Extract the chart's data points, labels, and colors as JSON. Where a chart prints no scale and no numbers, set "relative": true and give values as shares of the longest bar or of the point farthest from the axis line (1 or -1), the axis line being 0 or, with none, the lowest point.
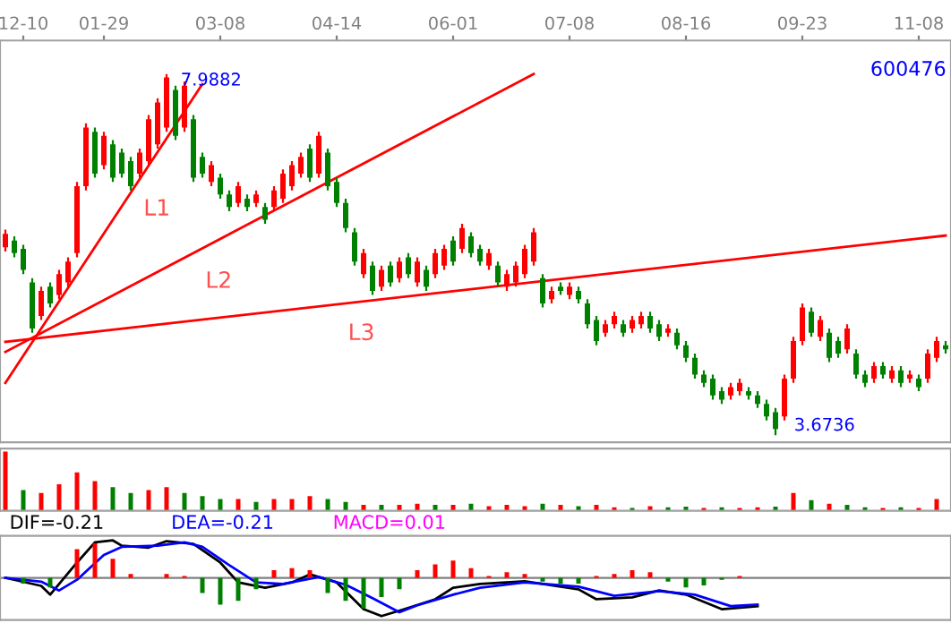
{
  "chart_data": [
    {
      "type": "candlestick",
      "title": "600476",
      "categories": [
        null,
        null,
        "12-10",
        null,
        null,
        null,
        null,
        null,
        null,
        null,
        null,
        "01-29",
        null,
        null,
        null,
        null,
        null,
        null,
        null,
        null,
        null,
        null,
        null,
        null,
        "03-08",
        null,
        null,
        null,
        null,
        null,
        null,
        null,
        null,
        null,
        null,
        null,
        null,
        "04-14",
        null,
        null,
        null,
        null,
        null,
        null,
        null,
        null,
        null,
        null,
        null,
        null,
        "06-01",
        null,
        null,
        null,
        null,
        null,
        null,
        null,
        null,
        null,
        null,
        null,
        null,
        "07-08",
        null,
        null,
        null,
        null,
        null,
        null,
        null,
        null,
        null,
        null,
        null,
        null,
        "08-16",
        null,
        null,
        null,
        null,
        null,
        null,
        null,
        null,
        null,
        null,
        null,
        null,
        "09-23",
        null,
        null,
        null,
        null,
        null,
        null,
        null,
        null,
        null,
        null,
        null,
        null,
        "11-08",
        null,
        null,
        null
      ],
      "ohlc": [
        [
          5.92,
          6.13,
          5.87,
          6.08
        ],
        [
          6.0,
          6.05,
          5.8,
          5.85
        ],
        [
          5.9,
          5.95,
          5.6,
          5.65
        ],
        [
          5.5,
          5.55,
          4.9,
          4.95
        ],
        [
          5.1,
          5.45,
          5.05,
          5.4
        ],
        [
          5.45,
          5.5,
          5.2,
          5.25
        ],
        [
          5.35,
          5.65,
          5.3,
          5.6
        ],
        [
          5.5,
          5.8,
          5.45,
          5.75
        ],
        [
          5.85,
          6.7,
          5.8,
          6.65
        ],
        [
          6.65,
          7.4,
          6.6,
          7.35
        ],
        [
          7.3,
          7.35,
          6.75,
          6.8
        ],
        [
          6.9,
          7.3,
          6.85,
          7.25
        ],
        [
          7.15,
          7.2,
          6.7,
          6.75
        ],
        [
          7.05,
          7.1,
          6.75,
          6.8
        ],
        [
          6.95,
          7.0,
          6.6,
          6.65
        ],
        [
          6.8,
          7.1,
          6.75,
          7.05
        ],
        [
          6.95,
          7.5,
          6.9,
          7.45
        ],
        [
          7.15,
          7.7,
          7.1,
          7.65
        ],
        [
          7.35,
          7.9882,
          7.3,
          7.95
        ],
        [
          7.8,
          7.85,
          7.2,
          7.25
        ],
        [
          7.35,
          7.9,
          7.3,
          7.85
        ],
        [
          7.45,
          7.5,
          6.7,
          6.75
        ],
        [
          7.0,
          7.05,
          6.75,
          6.8
        ],
        [
          6.7,
          6.95,
          6.65,
          6.9
        ],
        [
          6.75,
          6.8,
          6.5,
          6.55
        ],
        [
          6.55,
          6.6,
          6.35,
          6.4
        ],
        [
          6.45,
          6.7,
          6.4,
          6.65
        ],
        [
          6.5,
          6.55,
          6.35,
          6.4
        ],
        [
          6.45,
          6.6,
          6.4,
          6.55
        ],
        [
          6.4,
          6.45,
          6.2,
          6.25
        ],
        [
          6.4,
          6.65,
          6.35,
          6.6
        ],
        [
          6.5,
          6.85,
          6.45,
          6.8
        ],
        [
          6.65,
          6.95,
          6.6,
          6.9
        ],
        [
          6.8,
          7.05,
          6.75,
          7.0
        ],
        [
          7.1,
          7.15,
          6.7,
          6.75
        ],
        [
          6.8,
          7.3,
          6.75,
          7.25
        ],
        [
          7.05,
          7.1,
          6.6,
          6.65
        ],
        [
          6.7,
          6.75,
          6.4,
          6.45
        ],
        [
          6.45,
          6.5,
          6.1,
          6.15
        ],
        [
          6.1,
          6.15,
          5.7,
          5.75
        ],
        [
          5.6,
          5.9,
          5.55,
          5.85
        ],
        [
          5.7,
          5.75,
          5.35,
          5.4
        ],
        [
          5.45,
          5.7,
          5.4,
          5.65
        ],
        [
          5.7,
          5.75,
          5.45,
          5.5
        ],
        [
          5.55,
          5.8,
          5.5,
          5.75
        ],
        [
          5.8,
          5.85,
          5.55,
          5.6
        ],
        [
          5.5,
          5.8,
          5.45,
          5.75
        ],
        [
          5.65,
          5.7,
          5.4,
          5.45
        ],
        [
          5.6,
          5.9,
          5.55,
          5.85
        ],
        [
          5.7,
          5.95,
          5.65,
          5.9
        ],
        [
          6.0,
          6.05,
          5.7,
          5.75
        ],
        [
          5.9,
          6.2,
          5.85,
          6.15
        ],
        [
          6.05,
          6.1,
          5.8,
          5.85
        ],
        [
          5.9,
          5.95,
          5.7,
          5.75
        ],
        [
          5.7,
          5.9,
          5.65,
          5.85
        ],
        [
          5.7,
          5.75,
          5.45,
          5.5
        ],
        [
          5.45,
          5.65,
          5.4,
          5.6
        ],
        [
          5.5,
          5.75,
          5.45,
          5.7
        ],
        [
          5.6,
          5.95,
          5.55,
          5.9
        ],
        [
          5.75,
          6.15,
          5.7,
          6.1
        ],
        [
          5.55,
          5.6,
          5.2,
          5.25
        ],
        [
          5.3,
          5.45,
          5.25,
          5.4
        ],
        [
          5.45,
          5.5,
          5.35,
          5.4
        ],
        [
          5.35,
          5.5,
          5.3,
          5.45
        ],
        [
          5.4,
          5.45,
          5.25,
          5.3
        ],
        [
          5.25,
          5.3,
          4.95,
          5.0
        ],
        [
          5.05,
          5.1,
          4.75,
          4.8
        ],
        [
          4.9,
          5.05,
          4.85,
          5.0
        ],
        [
          5.0,
          5.15,
          4.95,
          5.1
        ],
        [
          5.0,
          5.05,
          4.85,
          4.9
        ],
        [
          4.95,
          5.1,
          4.9,
          5.05
        ],
        [
          5.0,
          5.15,
          4.95,
          5.1
        ],
        [
          5.1,
          5.15,
          4.9,
          4.95
        ],
        [
          5.0,
          5.05,
          4.8,
          4.85
        ],
        [
          4.9,
          5.0,
          4.85,
          4.95
        ],
        [
          4.9,
          4.95,
          4.7,
          4.75
        ],
        [
          4.75,
          4.8,
          4.55,
          4.6
        ],
        [
          4.6,
          4.65,
          4.35,
          4.4
        ],
        [
          4.4,
          4.45,
          4.25,
          4.3
        ],
        [
          4.35,
          4.4,
          4.1,
          4.15
        ],
        [
          4.2,
          4.25,
          4.05,
          4.1
        ],
        [
          4.15,
          4.3,
          4.1,
          4.25
        ],
        [
          4.2,
          4.35,
          4.15,
          4.3
        ],
        [
          4.2,
          4.25,
          4.1,
          4.15
        ],
        [
          4.15,
          4.2,
          4.0,
          4.05
        ],
        [
          4.05,
          4.1,
          3.85,
          3.9
        ],
        [
          3.95,
          4.0,
          3.6736,
          3.75
        ],
        [
          3.9,
          4.4,
          3.85,
          4.35
        ],
        [
          4.35,
          4.85,
          4.3,
          4.8
        ],
        [
          4.8,
          5.25,
          4.75,
          5.2
        ],
        [
          5.15,
          5.2,
          4.85,
          4.9
        ],
        [
          4.85,
          5.1,
          4.8,
          5.05
        ],
        [
          4.9,
          4.95,
          4.55,
          4.6
        ],
        [
          4.8,
          4.85,
          4.6,
          4.65
        ],
        [
          4.7,
          5.0,
          4.65,
          4.95
        ],
        [
          4.65,
          4.7,
          4.35,
          4.4
        ],
        [
          4.4,
          4.45,
          4.25,
          4.3
        ],
        [
          4.35,
          4.55,
          4.3,
          4.5
        ],
        [
          4.5,
          4.55,
          4.35,
          4.4
        ],
        [
          4.35,
          4.5,
          4.3,
          4.45
        ],
        [
          4.45,
          4.5,
          4.25,
          4.3
        ],
        [
          4.35,
          4.45,
          4.3,
          4.4
        ],
        [
          4.35,
          4.4,
          4.2,
          4.25
        ],
        [
          4.35,
          4.7,
          4.3,
          4.65
        ],
        [
          4.6,
          4.85,
          4.55,
          4.8
        ],
        [
          4.75,
          4.8,
          4.65,
          4.7
        ]
      ],
      "colors": [
        "#ff0000",
        "#008000",
        "#008000",
        "#008000",
        "#ff0000",
        "#008000",
        "#ff0000",
        "#ff0000",
        "#ff0000",
        "#ff0000",
        "#008000",
        "#ff0000",
        "#008000",
        "#008000",
        "#008000",
        "#ff0000",
        "#ff0000",
        "#ff0000",
        "#ff0000",
        "#008000",
        "#ff0000",
        "#008000",
        "#008000",
        "#ff0000",
        "#008000",
        "#008000",
        "#ff0000",
        "#008000",
        "#ff0000",
        "#008000",
        "#ff0000",
        "#ff0000",
        "#ff0000",
        "#ff0000",
        "#008000",
        "#ff0000",
        "#008000",
        "#008000",
        "#008000",
        "#008000",
        "#ff0000",
        "#008000",
        "#ff0000",
        "#008000",
        "#ff0000",
        "#008000",
        "#ff0000",
        "#008000",
        "#ff0000",
        "#ff0000",
        "#008000",
        "#ff0000",
        "#008000",
        "#008000",
        "#ff0000",
        "#008000",
        "#ff0000",
        "#ff0000",
        "#ff0000",
        "#ff0000",
        "#008000",
        "#ff0000",
        "#008000",
        "#ff0000",
        "#008000",
        "#008000",
        "#008000",
        "#ff0000",
        "#ff0000",
        "#008000",
        "#ff0000",
        "#ff0000",
        "#008000",
        "#008000",
        "#ff0000",
        "#008000",
        "#008000",
        "#008000",
        "#008000",
        "#008000",
        "#008000",
        "#ff0000",
        "#ff0000",
        "#008000",
        "#008000",
        "#008000",
        "#008000",
        "#ff0000",
        "#ff0000",
        "#ff0000",
        "#008000",
        "#ff0000",
        "#008000",
        "#008000",
        "#ff0000",
        "#008000",
        "#008000",
        "#ff0000",
        "#008000",
        "#ff0000",
        "#008000",
        "#ff0000",
        "#008000",
        "#ff0000",
        "#ff0000",
        "#008000"
      ],
      "series": [
        {
          "type": "line",
          "color": "#ff0000",
          "values": [
            4.3,
            null,
            null,
            null,
            null,
            null,
            null,
            null,
            null,
            null,
            null,
            null,
            null,
            null,
            null,
            null,
            null,
            null,
            null,
            null,
            null,
            null,
            7.87,
            null,
            null,
            null,
            null,
            null,
            null,
            null,
            null,
            null,
            null,
            null,
            null,
            null,
            null,
            null,
            null,
            null,
            null,
            null,
            null,
            null,
            null,
            null,
            null,
            null,
            null,
            null,
            null,
            null,
            null,
            null,
            null,
            null,
            null,
            null,
            null,
            null,
            null,
            null,
            null,
            null,
            null,
            null,
            null,
            null,
            null,
            null,
            null,
            null,
            null,
            null,
            null,
            null,
            null,
            null,
            null,
            null,
            null,
            null,
            null,
            null,
            null,
            null,
            null,
            null,
            null,
            null,
            null,
            null,
            null,
            null,
            null,
            null,
            null,
            null,
            null,
            null,
            null,
            null,
            null,
            null,
            null,
            null
          ]
        },
        {
          "type": "line",
          "color": "#ff0000",
          "values": [
            4.67,
            null,
            null,
            null,
            null,
            null,
            null,
            null,
            null,
            null,
            null,
            null,
            null,
            null,
            null,
            null,
            null,
            null,
            null,
            null,
            null,
            null,
            null,
            null,
            null,
            null,
            null,
            null,
            null,
            null,
            null,
            null,
            null,
            null,
            null,
            null,
            null,
            null,
            null,
            null,
            null,
            null,
            null,
            null,
            null,
            null,
            null,
            null,
            null,
            null,
            null,
            null,
            null,
            null,
            null,
            null,
            null,
            null,
            null,
            7.99,
            null,
            null,
            null,
            null,
            null,
            null,
            null,
            null,
            null,
            null,
            null,
            null,
            null,
            null,
            null,
            null,
            null,
            null,
            null,
            null,
            null,
            null,
            null,
            null,
            null,
            null,
            null,
            null,
            null,
            null,
            null,
            null,
            null,
            null,
            null,
            null,
            null,
            null,
            null,
            null,
            null,
            null,
            null,
            null,
            null,
            null
          ]
        },
        {
          "type": "line",
          "color": "#ff0000",
          "values": [
            4.79,
            null,
            null,
            null,
            null,
            null,
            null,
            null,
            null,
            null,
            null,
            null,
            null,
            null,
            null,
            null,
            null,
            null,
            null,
            null,
            null,
            null,
            null,
            null,
            null,
            null,
            null,
            null,
            null,
            null,
            null,
            null,
            null,
            null,
            null,
            null,
            null,
            null,
            null,
            null,
            null,
            null,
            null,
            null,
            null,
            null,
            null,
            null,
            null,
            null,
            null,
            null,
            null,
            null,
            null,
            null,
            null,
            null,
            null,
            null,
            null,
            null,
            null,
            null,
            null,
            null,
            null,
            null,
            null,
            null,
            null,
            null,
            null,
            null,
            null,
            null,
            null,
            null,
            null,
            null,
            null,
            null,
            null,
            null,
            null,
            null,
            null,
            null,
            null,
            null,
            null,
            null,
            null,
            null,
            null,
            null,
            null,
            null,
            null,
            null,
            null,
            null,
            null,
            null,
            null,
            6.06
          ]
        }
      ],
      "annotations": [
        "7.9882",
        "3.6736",
        "L1",
        "L2",
        "L3"
      ],
      "ylim": [
        3.59,
        8.39
      ],
      "tick_labels": "x",
      "grid": false
    },
    {
      "type": "bar",
      "relative": true,
      "categories": [
        null,
        null,
        null,
        null,
        null,
        null,
        null,
        null,
        null,
        null,
        null,
        null,
        null,
        null,
        null,
        null,
        null,
        null,
        null,
        null,
        null,
        null,
        null,
        null,
        null,
        null,
        null,
        null,
        null,
        null,
        null,
        null,
        null,
        null,
        null,
        null,
        null,
        null,
        null,
        null,
        null,
        null,
        null,
        null,
        null,
        null,
        null,
        null,
        null,
        null,
        null,
        null,
        null,
        null,
        null,
        null,
        null,
        null,
        null,
        null,
        null,
        null,
        null,
        null,
        null,
        null,
        null,
        null,
        null,
        null,
        null,
        null,
        null,
        null,
        null,
        null,
        null,
        null,
        null,
        null,
        null,
        null,
        null,
        null,
        null,
        null,
        null,
        null,
        null,
        null,
        null,
        null,
        null,
        null,
        null,
        null,
        null,
        null,
        null,
        null,
        null,
        null,
        null,
        null,
        null,
        null
      ],
      "values": [
        1.0,
        null,
        0.35,
        null,
        0.3,
        null,
        0.45,
        null,
        0.65,
        null,
        0.5,
        null,
        0.4,
        null,
        0.3,
        null,
        0.35,
        null,
        0.4,
        null,
        0.3,
        null,
        0.25,
        null,
        0.2,
        null,
        0.2,
        null,
        0.15,
        null,
        0.2,
        null,
        0.2,
        null,
        0.25,
        null,
        0.2,
        null,
        0.15,
        null,
        0.1,
        null,
        0.1,
        null,
        0.1,
        null,
        0.12,
        null,
        0.1,
        null,
        0.1,
        null,
        0.12,
        null,
        0.08,
        null,
        0.1,
        null,
        0.08,
        null,
        0.12,
        null,
        0.1,
        null,
        0.08,
        null,
        0.1,
        null,
        0.06,
        null,
        0.05,
        null,
        0.08,
        null,
        0.06,
        null,
        0.07,
        null,
        0.05,
        null,
        0.06,
        null,
        0.05,
        null,
        0.06,
        null,
        0.07,
        null,
        0.3,
        null,
        0.18,
        null,
        0.12,
        null,
        0.1,
        null,
        0.06,
        null,
        0.05,
        null,
        0.06,
        null,
        0.05,
        null,
        0.2,
        null
      ],
      "colors": [
        "#ff0000",
        null,
        "#008000",
        null,
        "#ff0000",
        null,
        "#ff0000",
        null,
        "#ff0000",
        null,
        "#ff0000",
        null,
        "#008000",
        null,
        "#008000",
        null,
        "#ff0000",
        null,
        "#ff0000",
        null,
        "#008000",
        null,
        "#008000",
        null,
        "#008000",
        null,
        "#ff0000",
        null,
        "#008000",
        null,
        "#ff0000",
        null,
        "#ff0000",
        null,
        "#ff0000",
        null,
        "#008000",
        null,
        "#008000",
        null,
        "#ff0000",
        null,
        "#008000",
        null,
        "#ff0000",
        null,
        "#ff0000",
        null,
        "#008000",
        null,
        "#ff0000",
        null,
        "#008000",
        null,
        "#ff0000",
        null,
        "#ff0000",
        null,
        "#ff0000",
        null,
        "#008000",
        null,
        "#ff0000",
        null,
        "#008000",
        null,
        "#ff0000",
        null,
        "#ff0000",
        null,
        "#008000",
        null,
        "#ff0000",
        null,
        "#008000",
        null,
        "#008000",
        null,
        "#ff0000",
        null,
        "#008000",
        null,
        "#ff0000",
        null,
        "#ff0000",
        null,
        "#008000",
        null,
        "#ff0000",
        null,
        "#008000",
        null,
        "#ff0000",
        null,
        "#008000",
        null,
        "#008000",
        null,
        "#ff0000",
        null,
        "#008000",
        null,
        "#ff0000",
        null,
        "#ff0000",
        null
      ],
      "tick_labels": false
    },
    {
      "type": "line",
      "relative": true,
      "tick_labels": false,
      "categories": [
        null,
        null,
        null,
        null,
        null,
        null,
        null,
        null,
        null,
        null,
        null,
        null,
        null,
        null,
        null,
        null,
        null,
        null,
        null,
        null,
        null,
        null,
        null,
        null,
        null,
        null,
        null,
        null,
        null,
        null,
        null,
        null,
        null,
        null,
        null,
        null,
        null,
        null,
        null,
        null,
        null,
        null,
        null,
        null,
        null,
        null,
        null,
        null,
        null,
        null,
        null,
        null,
        null,
        null,
        null,
        null,
        null,
        null,
        null,
        null,
        null,
        null,
        null,
        null,
        null,
        null,
        null,
        null,
        null,
        null,
        null,
        null,
        null,
        null,
        null,
        null,
        null,
        null,
        null,
        null,
        null,
        null,
        null,
        null,
        null,
        null,
        null,
        null,
        null,
        null,
        null,
        null,
        null,
        null,
        null,
        null,
        null,
        null,
        null,
        null,
        null,
        null,
        null,
        null,
        null,
        null
      ],
      "series": [
        {
          "name": "DIF=-0.21",
          "color": "#000000",
          "values": [
            0,
            null,
            null,
            null,
            -0.21,
            -0.44,
            null,
            null,
            0.4,
            null,
            0.93,
            null,
            0.98,
            0.84,
            null,
            null,
            0.79,
            null,
            0.96,
            null,
            null,
            0.89,
            null,
            null,
            0.4,
            null,
            -0.12,
            null,
            null,
            -0.26,
            null,
            null,
            -0.12,
            null,
            0.09,
            null,
            null,
            -0.12,
            null,
            null,
            -0.82,
            null,
            -1.0,
            null,
            -0.86,
            null,
            null,
            null,
            -0.56,
            null,
            -0.26,
            null,
            null,
            -0.16,
            null,
            null,
            null,
            null,
            -0.09,
            null,
            null,
            null,
            null,
            null,
            -0.3,
            null,
            -0.56,
            null,
            null,
            null,
            -0.51,
            null,
            null,
            -0.33,
            null,
            null,
            -0.44,
            null,
            null,
            null,
            -0.82,
            null,
            null,
            null,
            -0.74,
            null,
            null,
            null,
            null,
            null,
            null,
            null,
            null,
            null,
            null,
            null,
            null,
            null,
            null,
            null,
            null,
            null,
            null,
            null,
            null,
            null
          ]
        },
        {
          "name": "DEA=-0.21",
          "color": "#0000ff",
          "values": [
            0,
            null,
            null,
            null,
            -0.1,
            null,
            -0.33,
            null,
            -0.05,
            null,
            null,
            0.6,
            null,
            0.81,
            null,
            null,
            null,
            0.84,
            null,
            null,
            0.93,
            null,
            0.81,
            null,
            null,
            0.33,
            null,
            null,
            -0.12,
            null,
            null,
            -0.16,
            null,
            null,
            null,
            0.02,
            null,
            null,
            -0.18,
            null,
            null,
            -0.53,
            null,
            null,
            -0.9,
            null,
            -0.72,
            null,
            null,
            null,
            -0.44,
            null,
            null,
            -0.26,
            null,
            null,
            null,
            null,
            -0.12,
            null,
            null,
            null,
            null,
            null,
            -0.23,
            null,
            null,
            null,
            -0.47,
            null,
            null,
            null,
            null,
            -0.35,
            null,
            null,
            null,
            -0.44,
            null,
            null,
            null,
            -0.74,
            null,
            null,
            -0.7,
            null,
            null,
            null,
            null,
            null,
            null,
            null,
            null,
            null,
            null,
            null,
            null,
            null,
            null,
            null,
            null,
            null,
            null,
            null,
            null,
            null
          ]
        },
        {
          "name": "MACD=0.01",
          "type": "bar",
          "color": "#ff00ff",
          "values": [
            null,
            null,
            -0.15,
            null,
            null,
            -0.25,
            null,
            null,
            0.75,
            null,
            0.9,
            null,
            0.5,
            null,
            0.1,
            null,
            null,
            null,
            0.1,
            null,
            0.05,
            null,
            -0.4,
            null,
            -0.7,
            null,
            -0.6,
            null,
            -0.3,
            null,
            0.2,
            null,
            0.25,
            null,
            0.2,
            null,
            -0.4,
            null,
            -0.6,
            null,
            -0.8,
            null,
            -0.5,
            null,
            -0.3,
            null,
            0.2,
            null,
            0.35,
            null,
            0.45,
            null,
            0.25,
            null,
            0.05,
            null,
            0.15,
            null,
            0.1,
            null,
            -0.1,
            null,
            -0.15,
            null,
            -0.15,
            null,
            0.05,
            null,
            0.1,
            null,
            0.2,
            null,
            0.15,
            null,
            -0.1,
            null,
            -0.25,
            null,
            -0.2,
            null,
            -0.05,
            null,
            0.05,
            null,
            null,
            null,
            null,
            null,
            null,
            null,
            null,
            null,
            null,
            null,
            null,
            null,
            null,
            null,
            null,
            null,
            null,
            null,
            null,
            null,
            null,
            null
          ],
          "colors": [
            null,
            null,
            "#008000",
            null,
            null,
            "#008000",
            null,
            null,
            "#ff0000",
            null,
            "#ff0000",
            null,
            "#ff0000",
            null,
            "#ff0000",
            null,
            null,
            null,
            "#ff0000",
            null,
            "#ff0000",
            null,
            "#008000",
            null,
            "#008000",
            null,
            "#008000",
            null,
            "#008000",
            null,
            "#ff0000",
            null,
            "#ff0000",
            null,
            "#ff0000",
            null,
            "#008000",
            null,
            "#008000",
            null,
            "#008000",
            null,
            "#008000",
            null,
            "#008000",
            null,
            "#ff0000",
            null,
            "#ff0000",
            null,
            "#ff0000",
            null,
            "#ff0000",
            null,
            "#ff0000",
            null,
            "#ff0000",
            null,
            "#ff0000",
            null,
            "#008000",
            null,
            "#008000",
            null,
            "#008000",
            null,
            "#ff0000",
            null,
            "#ff0000",
            null,
            "#ff0000",
            null,
            "#ff0000",
            null,
            "#008000",
            null,
            "#008000",
            null,
            "#008000",
            null,
            "#008000",
            null,
            "#ff0000",
            null,
            null,
            null,
            null,
            null,
            null,
            null,
            null,
            null,
            null,
            null,
            null,
            null,
            null,
            null,
            null,
            null,
            null,
            null,
            null,
            null,
            null,
            null
          ]
        }
      ]
    }
  ]
}
